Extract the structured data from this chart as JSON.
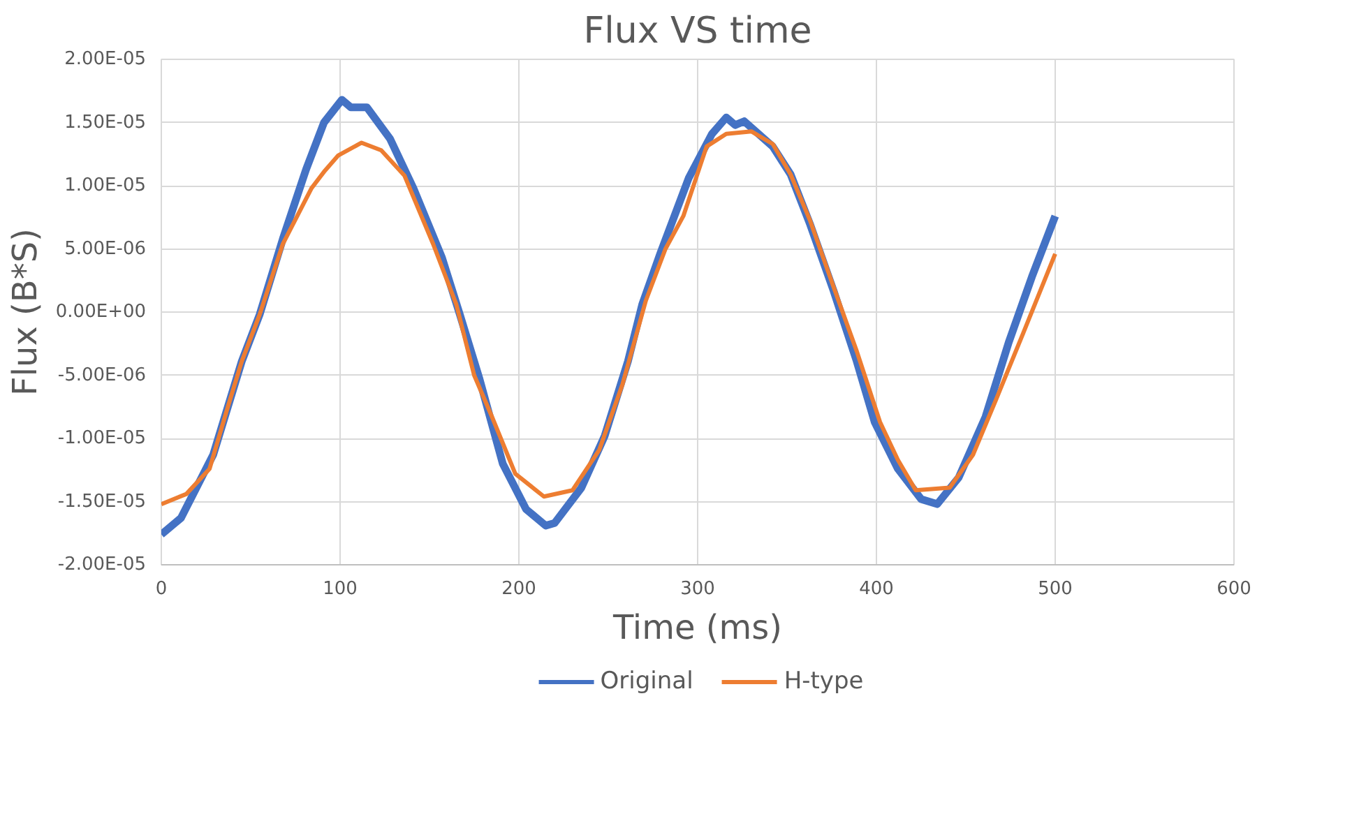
{
  "chart_data": {
    "type": "line",
    "title": "Flux VS time",
    "xlabel": "Time (ms)",
    "ylabel": "Flux (B*S)",
    "xlim": [
      0,
      600
    ],
    "xticks": [
      0,
      100,
      200,
      300,
      400,
      500,
      600
    ],
    "ylim": [
      -2e-05,
      2e-05
    ],
    "yticks": [
      {
        "value": -2e-05,
        "label": "-2.00E-05"
      },
      {
        "value": -1.5e-05,
        "label": "-1.50E-05"
      },
      {
        "value": -1e-05,
        "label": "-1.00E-05"
      },
      {
        "value": -5e-06,
        "label": "-5.00E-06"
      },
      {
        "value": 0,
        "label": "0.00E+00"
      },
      {
        "value": 5e-06,
        "label": "5.00E-06"
      },
      {
        "value": 1e-05,
        "label": "1.00E-05"
      },
      {
        "value": 1.5e-05,
        "label": "1.50E-05"
      },
      {
        "value": 2e-05,
        "label": "2.00E-05"
      }
    ],
    "grid": true,
    "legend": "bottom",
    "line_style": "solid",
    "marker": "none",
    "series": [
      {
        "name": "Original",
        "color": "#4472c4",
        "x": [
          0,
          11,
          29,
          45,
          55,
          68,
          81,
          91,
          101,
          106,
          115,
          128,
          141,
          157,
          167,
          178,
          191,
          204,
          215,
          220,
          235,
          248,
          261,
          269,
          279,
          295,
          308,
          316,
          321,
          326,
          342,
          352,
          363,
          376,
          389,
          399,
          412,
          425,
          434,
          446,
          461,
          474,
          487,
          500
        ],
        "values": [
          -1.76e-05,
          -1.63e-05,
          -1.13e-05,
          -3.9e-06,
          -2e-07,
          5.8e-06,
          1.13e-05,
          1.5e-05,
          1.68e-05,
          1.62e-05,
          1.62e-05,
          1.37e-05,
          9.8e-06,
          4.3e-06,
          -2e-07,
          -5.3e-06,
          -1.2e-05,
          -1.56e-05,
          -1.69e-05,
          -1.67e-05,
          -1.39e-05,
          -9.8e-06,
          -3.9e-06,
          6e-07,
          4.6e-06,
          1.06e-05,
          1.41e-05,
          1.54e-05,
          1.48e-05,
          1.51e-05,
          1.31e-05,
          1.09e-05,
          6.9e-06,
          1.7e-06,
          -3.9e-06,
          -8.7e-06,
          -1.24e-05,
          -1.48e-05,
          -1.52e-05,
          -1.31e-05,
          -8.3e-06,
          -2.4e-06,
          2.8e-06,
          7.6e-06
        ]
      },
      {
        "name": "H-type",
        "color": "#ed7d31",
        "x": [
          0,
          14,
          27,
          37,
          45,
          55,
          68,
          84,
          91,
          99,
          112,
          123,
          136,
          152,
          165,
          175,
          185,
          198,
          214,
          230,
          245,
          258,
          271,
          282,
          292,
          305,
          316,
          330,
          342,
          352,
          363,
          376,
          389,
          402,
          412,
          422,
          441,
          454,
          467,
          482,
          500
        ],
        "values": [
          -1.52e-05,
          -1.44e-05,
          -1.24e-05,
          -7.6e-06,
          -3.9e-06,
          -2e-07,
          5.4e-06,
          9.8e-06,
          1.11e-05,
          1.24e-05,
          1.34e-05,
          1.28e-05,
          1.08e-05,
          5.4e-06,
          6e-07,
          -5e-06,
          -8.3e-06,
          -1.28e-05,
          -1.46e-05,
          -1.41e-05,
          -1.09e-05,
          -5.7e-06,
          9e-07,
          5e-06,
          7.6e-06,
          1.31e-05,
          1.41e-05,
          1.43e-05,
          1.33e-05,
          1.09e-05,
          7.2e-06,
          2e-06,
          -3.1e-06,
          -8.7e-06,
          -1.17e-05,
          -1.41e-05,
          -1.39e-05,
          -1.13e-05,
          -6.9e-06,
          -1.7e-06,
          4.6e-06
        ]
      }
    ]
  }
}
